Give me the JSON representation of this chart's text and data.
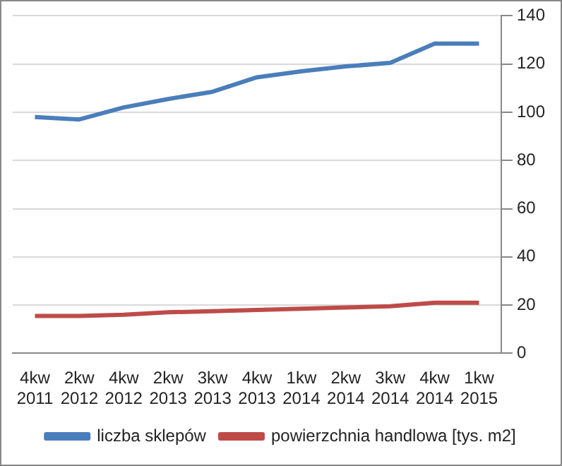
{
  "chart_data": {
    "type": "line",
    "categories": [
      "4kw 2011",
      "2kw 2012",
      "4kw 2012",
      "2kw 2013",
      "3kw 2013",
      "4kw 2013",
      "1kw 2014",
      "2kw 2014",
      "3kw 2014",
      "4kw 2014",
      "1kw 2015"
    ],
    "series": [
      {
        "name": "liczba sklepów",
        "color": "#4a7ebb",
        "values": [
          98,
          97,
          102,
          105.5,
          108.5,
          114.5,
          117,
          119,
          120.5,
          128.5,
          128.5
        ]
      },
      {
        "name": "powierzchnia handlowa [tys. m2]",
        "color": "#be4b48",
        "values": [
          15.5,
          15.5,
          16,
          17,
          17.5,
          18,
          18.5,
          19,
          19.5,
          21,
          21
        ]
      }
    ],
    "ylim": [
      0,
      140
    ],
    "yticks": [
      0,
      20,
      40,
      60,
      80,
      100,
      120,
      140
    ],
    "grid": "y",
    "legend": "bottom",
    "marker": "none",
    "line_style": "solid"
  }
}
